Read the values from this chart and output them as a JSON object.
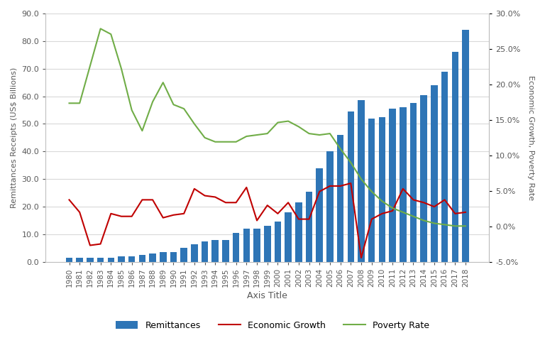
{
  "years": [
    1980,
    1981,
    1982,
    1983,
    1984,
    1985,
    1986,
    1987,
    1988,
    1989,
    1990,
    1991,
    1992,
    1993,
    1994,
    1995,
    1996,
    1997,
    1998,
    1999,
    2000,
    2001,
    2002,
    2003,
    2004,
    2005,
    2006,
    2007,
    2008,
    2009,
    2010,
    2011,
    2012,
    2013,
    2014,
    2015,
    2016,
    2017,
    2018
  ],
  "remittances": [
    1.5,
    1.5,
    1.5,
    1.5,
    1.5,
    2.0,
    2.0,
    2.5,
    3.0,
    3.5,
    3.5,
    5.0,
    6.5,
    7.5,
    8.0,
    8.0,
    10.5,
    12.0,
    12.0,
    13.0,
    14.5,
    18.0,
    21.5,
    25.5,
    34.0,
    40.0,
    46.0,
    54.5,
    58.5,
    52.0,
    52.5,
    55.5,
    56.0,
    57.5,
    60.5,
    64.0,
    69.0,
    76.0,
    84.0
  ],
  "economic_growth": [
    22.5,
    18.0,
    6.0,
    6.5,
    17.5,
    16.5,
    16.5,
    22.5,
    22.5,
    16.0,
    17.0,
    17.5,
    26.5,
    24.0,
    23.5,
    21.5,
    21.5,
    27.0,
    15.0,
    20.5,
    17.5,
    21.5,
    15.5,
    15.5,
    25.5,
    27.5,
    27.5,
    28.5,
    1.5,
    15.5,
    17.5,
    18.5,
    26.5,
    22.5,
    21.5,
    20.0,
    22.5,
    17.5,
    18.0
  ],
  "poverty_rate": [
    57.5,
    57.5,
    71.0,
    84.5,
    82.5,
    70.0,
    55.0,
    47.5,
    58.0,
    65.0,
    57.0,
    55.5,
    50.0,
    45.0,
    43.5,
    43.5,
    43.5,
    45.5,
    46.0,
    46.5,
    50.5,
    51.0,
    49.0,
    46.5,
    46.0,
    46.5,
    41.0,
    36.0,
    30.0,
    25.5,
    22.0,
    19.5,
    18.0,
    16.5,
    15.0,
    14.0,
    13.5,
    13.0,
    13.0
  ],
  "bar_color": "#2E75B6",
  "economic_growth_color": "#C00000",
  "poverty_rate_color": "#70AD47",
  "background_color": "#FFFFFF",
  "ylabel_left": "Remittances Receipts (US$ Billions)",
  "ylabel_right": "Economic Growth, Poverty Rate",
  "xlabel": "Axis Title",
  "ylim_left": [
    0,
    90
  ],
  "ylim_right": [
    -5.0,
    30.0
  ],
  "yticks_left": [
    0.0,
    10.0,
    20.0,
    30.0,
    40.0,
    50.0,
    60.0,
    70.0,
    80.0,
    90.0
  ],
  "yticks_right": [
    -5.0,
    0.0,
    5.0,
    10.0,
    15.0,
    20.0,
    25.0,
    30.0
  ],
  "legend_labels": [
    "Remittances",
    "Economic Growth",
    "Poverty Rate"
  ]
}
